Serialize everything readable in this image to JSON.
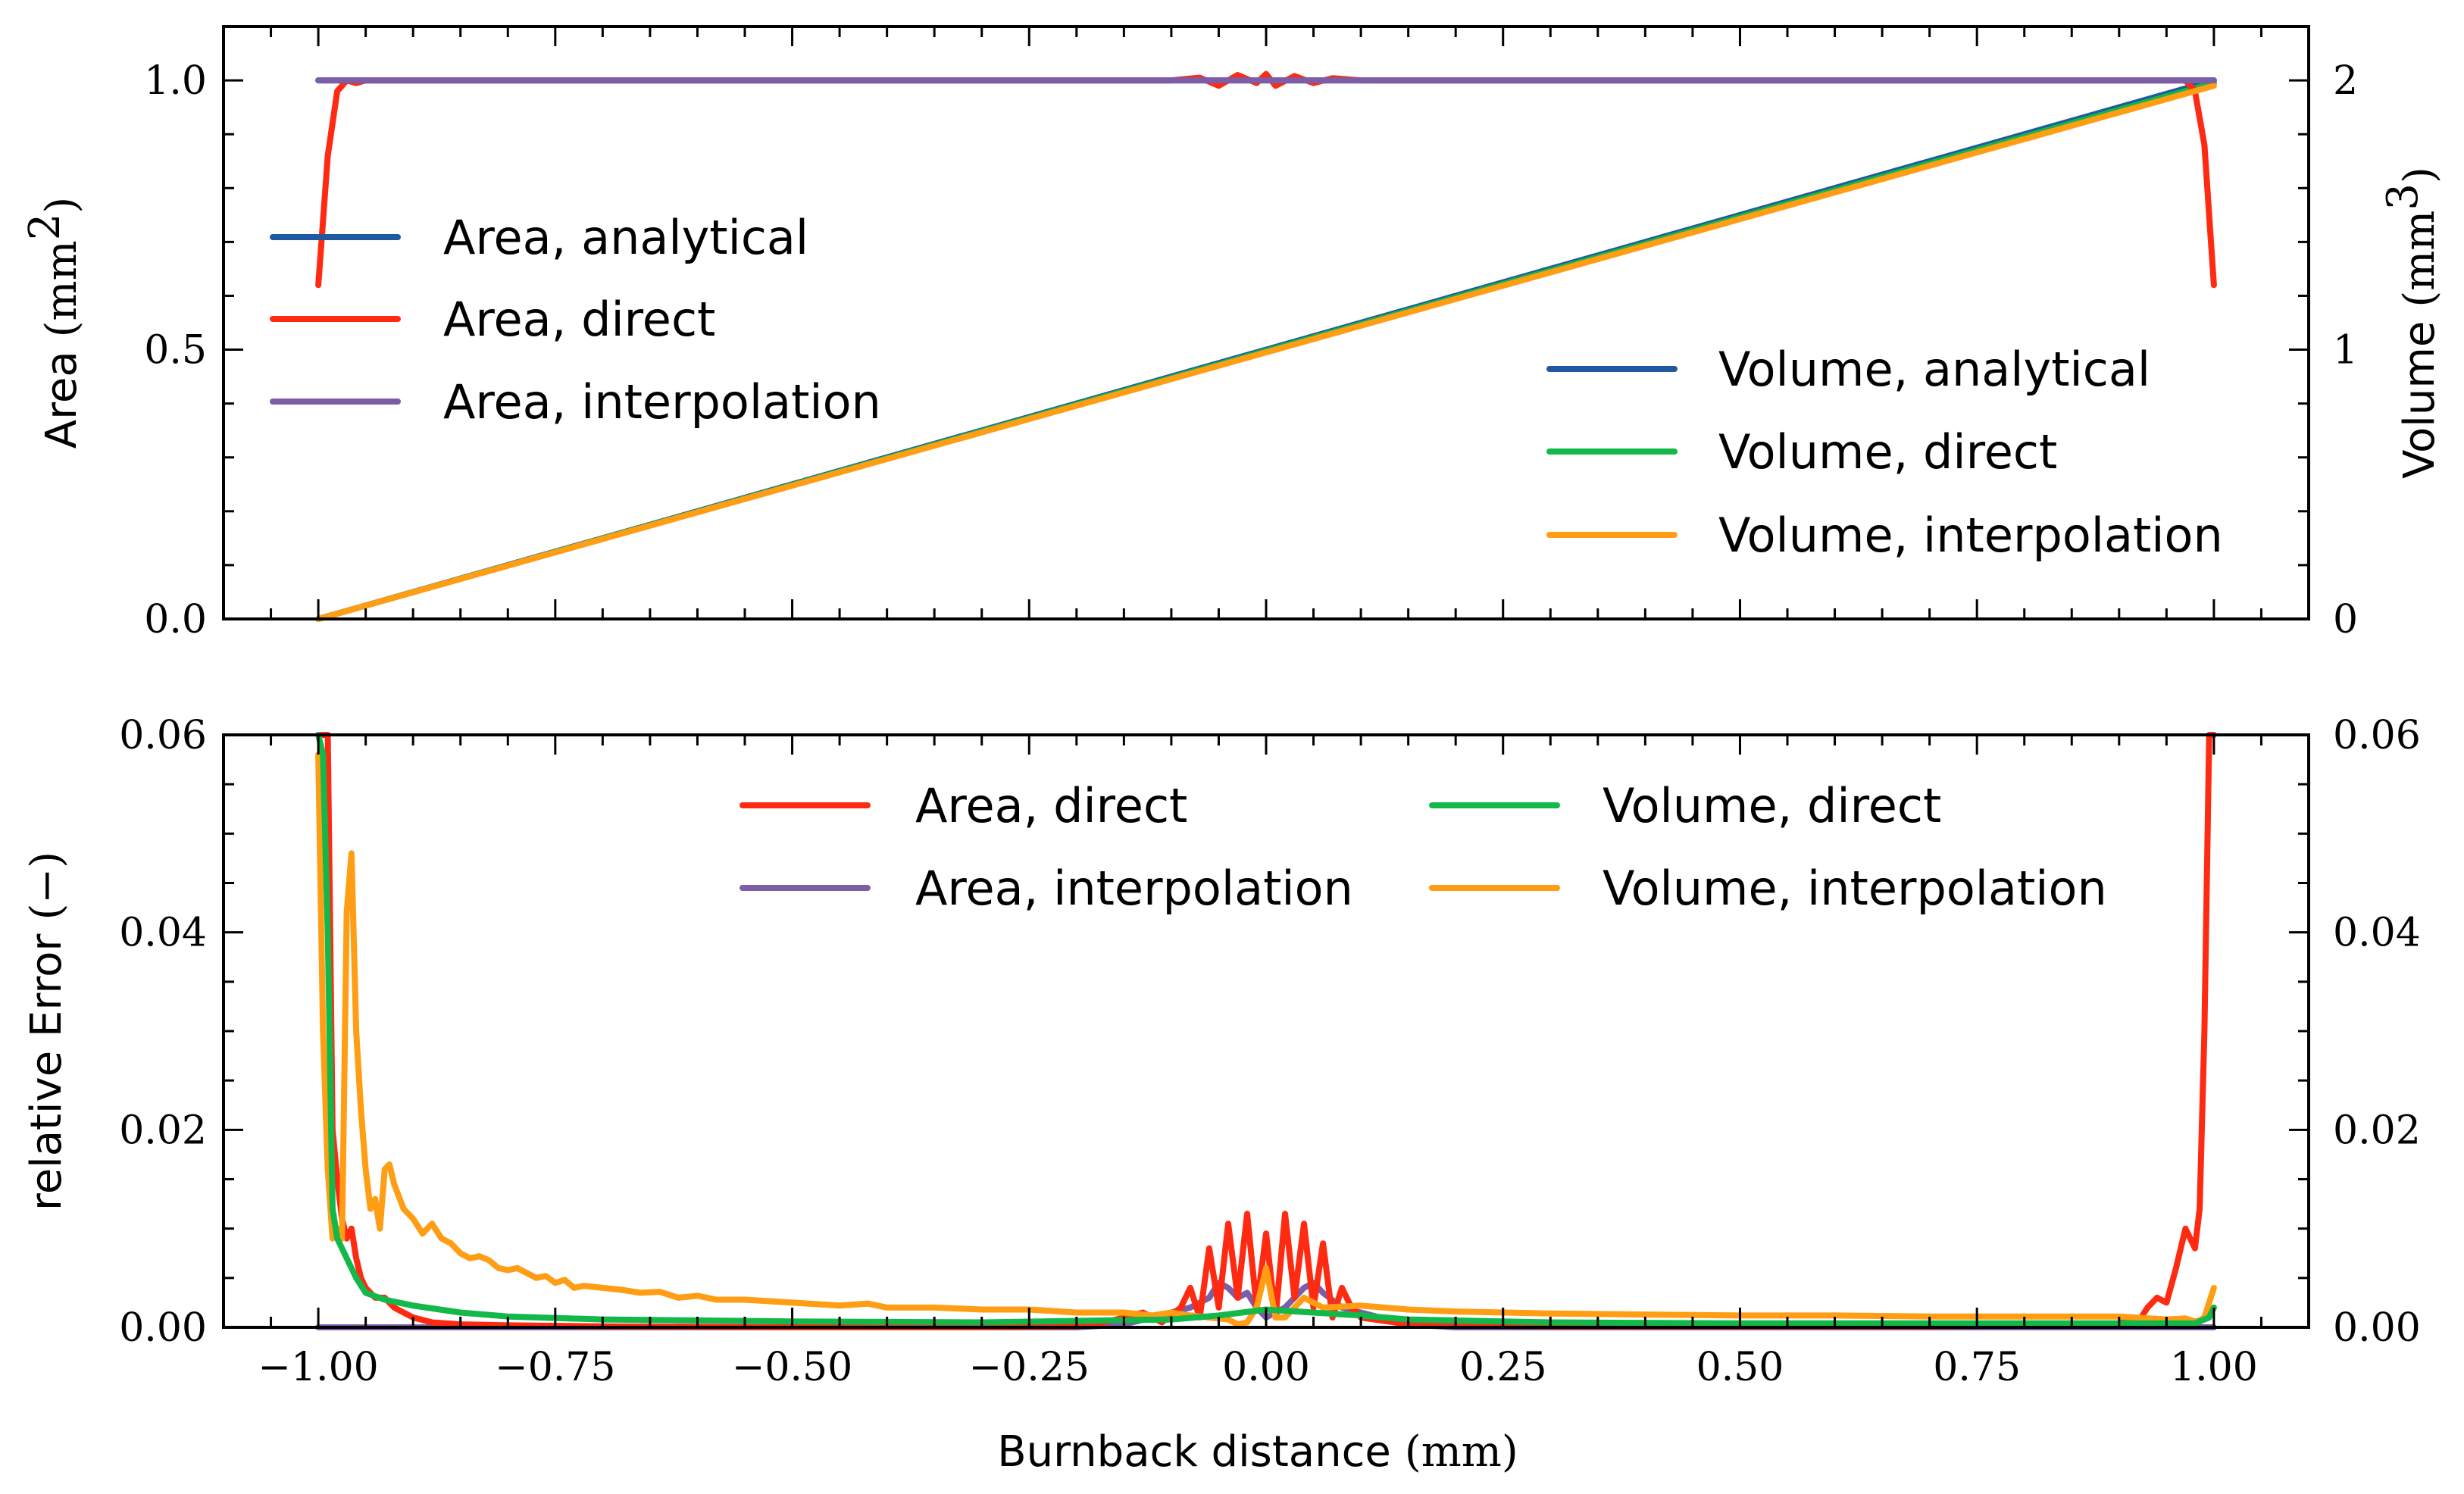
{
  "colors": {
    "area_analytical": "#1f5aa0",
    "area_direct": "#ff2a12",
    "area_interpolation": "#7b5ea7",
    "volume_analytical": "#1f5aa0",
    "volume_direct": "#12b84a",
    "volume_interpolation": "#ff9d14"
  },
  "chart_data": [
    {
      "type": "line",
      "panel": "top",
      "ylabel": "Area",
      "ylabel_unit": "(mm",
      "ylabel_unit_exp": "2",
      "ylabel_unit_close": ")",
      "y2label": "Volume",
      "y2label_unit": "(mm",
      "y2label_unit_exp": "3",
      "y2label_unit_close": ")",
      "xlim": [
        -1.1,
        1.1
      ],
      "ylim": [
        0,
        1.1
      ],
      "y2lim": [
        0,
        2.2
      ],
      "x_ticks": [
        -1.0,
        -0.75,
        -0.5,
        -0.25,
        0.0,
        0.25,
        0.5,
        0.75,
        1.0
      ],
      "y_ticks": [
        0.0,
        0.5,
        1.0
      ],
      "y_tick_labels": [
        "0.0",
        "0.5",
        "1.0"
      ],
      "y2_ticks": [
        0,
        1,
        2
      ],
      "y2_tick_labels": [
        "0",
        "1",
        "2"
      ],
      "legend_left": [
        "Area, analytical",
        "Area, direct",
        "Area, interpolation"
      ],
      "legend_left_keys": [
        "area_analytical",
        "area_direct",
        "area_interpolation"
      ],
      "legend_right": [
        "Volume, analytical",
        "Volume, direct",
        "Volume, interpolation"
      ],
      "legend_right_keys": [
        "volume_analytical",
        "volume_direct",
        "volume_interpolation"
      ],
      "series": [
        {
          "name": "Area, analytical",
          "axis": "left",
          "x": [
            -1.0,
            1.0
          ],
          "values": [
            1.0,
            1.0
          ]
        },
        {
          "name": "Area, direct",
          "axis": "left",
          "x": [
            -1.0,
            -0.99,
            -0.98,
            -0.97,
            -0.96,
            -0.95,
            -0.94,
            -0.9,
            -0.8,
            -0.5,
            -0.1,
            -0.07,
            -0.05,
            -0.03,
            -0.01,
            0.0,
            0.01,
            0.03,
            0.05,
            0.07,
            0.1,
            0.5,
            0.9,
            0.95,
            0.96,
            0.97,
            0.98,
            0.99,
            1.0
          ],
          "values": [
            0.62,
            0.86,
            0.98,
            1.0,
            0.995,
            1.0,
            1.0,
            1.0,
            1.0,
            1.0,
            1.0,
            1.005,
            0.99,
            1.01,
            0.995,
            1.012,
            0.99,
            1.008,
            0.995,
            1.004,
            1.0,
            1.0,
            1.0,
            1.0,
            1.0,
            1.0,
            0.98,
            0.88,
            0.62
          ]
        },
        {
          "name": "Area, interpolation",
          "axis": "left",
          "x": [
            -1.0,
            1.0
          ],
          "values": [
            1.0,
            1.0
          ]
        },
        {
          "name": "Volume, analytical",
          "axis": "right",
          "x": [
            -1.0,
            1.0
          ],
          "values": [
            0.0,
            2.0
          ]
        },
        {
          "name": "Volume, direct",
          "axis": "right",
          "x": [
            -1.0,
            1.0
          ],
          "values": [
            0.0,
            1.99
          ]
        },
        {
          "name": "Volume, interpolation",
          "axis": "right",
          "x": [
            -1.0,
            1.0
          ],
          "values": [
            0.0,
            1.98
          ]
        }
      ]
    },
    {
      "type": "line",
      "panel": "bottom",
      "xlabel": "Burnback distance",
      "xlabel_unit": "(mm)",
      "ylabel": "relative Error",
      "ylabel_unit": "(−)",
      "xlim": [
        -1.1,
        1.1
      ],
      "ylim": [
        0,
        0.06
      ],
      "y2lim": [
        0,
        0.06
      ],
      "x_ticks": [
        -1.0,
        -0.75,
        -0.5,
        -0.25,
        0.0,
        0.25,
        0.5,
        0.75,
        1.0
      ],
      "x_tick_labels": [
        "−1.00",
        "−0.75",
        "−0.50",
        "−0.25",
        "0.00",
        "0.25",
        "0.50",
        "0.75",
        "1.00"
      ],
      "y_ticks": [
        0.0,
        0.02,
        0.04,
        0.06
      ],
      "y_tick_labels": [
        "0.00",
        "0.02",
        "0.04",
        "0.06"
      ],
      "y2_tick_labels": [
        "0.00",
        "0.02",
        "0.04",
        "0.06"
      ],
      "legend_col1": [
        "Area, direct",
        "Area, interpolation"
      ],
      "legend_col1_keys": [
        "area_direct",
        "area_interpolation"
      ],
      "legend_col2": [
        "Volume, direct",
        "Volume, interpolation"
      ],
      "legend_col2_keys": [
        "volume_direct",
        "volume_interpolation"
      ],
      "series": [
        {
          "name": "Area, direct",
          "x": [
            -1.0,
            -0.995,
            -0.99,
            -0.985,
            -0.98,
            -0.975,
            -0.97,
            -0.965,
            -0.96,
            -0.955,
            -0.95,
            -0.94,
            -0.93,
            -0.92,
            -0.91,
            -0.9,
            -0.88,
            -0.85,
            -0.8,
            -0.7,
            -0.5,
            -0.3,
            -0.2,
            -0.17,
            -0.15,
            -0.13,
            -0.11,
            -0.09,
            -0.08,
            -0.07,
            -0.06,
            -0.05,
            -0.04,
            -0.03,
            -0.02,
            -0.01,
            0.0,
            0.01,
            0.02,
            0.03,
            0.04,
            0.05,
            0.06,
            0.07,
            0.08,
            0.09,
            0.1,
            0.15,
            0.3,
            0.5,
            0.7,
            0.9,
            0.91,
            0.92,
            0.93,
            0.94,
            0.95,
            0.96,
            0.97,
            0.98,
            0.985,
            0.99,
            0.995,
            1.0
          ],
          "values": [
            0.06,
            0.06,
            0.06,
            0.02,
            0.015,
            0.011,
            0.009,
            0.01,
            0.007,
            0.005,
            0.004,
            0.003,
            0.003,
            0.002,
            0.0015,
            0.001,
            0.0005,
            0.0003,
            0.0002,
            0.0001,
            0.0,
            0.0,
            0.0001,
            0.0005,
            0.001,
            0.0015,
            0.0005,
            0.002,
            0.004,
            0.001,
            0.008,
            0.002,
            0.0105,
            0.003,
            0.0115,
            0.002,
            0.0095,
            0.001,
            0.0115,
            0.003,
            0.0105,
            0.002,
            0.0085,
            0.001,
            0.004,
            0.002,
            0.001,
            0.0003,
            0.0001,
            0.0001,
            0.0001,
            0.0003,
            0.001,
            0.0005,
            0.002,
            0.003,
            0.0025,
            0.006,
            0.01,
            0.008,
            0.012,
            0.03,
            0.06,
            0.06
          ]
        },
        {
          "name": "Area, interpolation",
          "x": [
            -1.0,
            -0.5,
            -0.2,
            -0.15,
            -0.12,
            -0.1,
            -0.08,
            -0.06,
            -0.05,
            -0.04,
            -0.03,
            -0.02,
            -0.01,
            0.0,
            0.01,
            0.02,
            0.03,
            0.04,
            0.05,
            0.06,
            0.08,
            0.1,
            0.12,
            0.15,
            0.2,
            0.5,
            1.0
          ],
          "values": [
            0.0,
            0.0,
            0.0,
            0.0003,
            0.001,
            0.0015,
            0.002,
            0.003,
            0.0045,
            0.004,
            0.003,
            0.0035,
            0.002,
            0.001,
            0.0015,
            0.002,
            0.003,
            0.004,
            0.0045,
            0.0035,
            0.002,
            0.0015,
            0.001,
            0.0003,
            0.0,
            0.0,
            0.0
          ]
        },
        {
          "name": "Volume, direct",
          "x": [
            -1.0,
            -0.995,
            -0.99,
            -0.985,
            -0.98,
            -0.97,
            -0.96,
            -0.95,
            -0.93,
            -0.9,
            -0.85,
            -0.8,
            -0.7,
            -0.6,
            -0.5,
            -0.3,
            -0.1,
            -0.05,
            0.0,
            0.05,
            0.1,
            0.15,
            0.3,
            0.5,
            0.7,
            0.9,
            0.98,
            0.995,
            1.0
          ],
          "values": [
            0.06,
            0.058,
            0.04,
            0.012,
            0.009,
            0.007,
            0.005,
            0.0035,
            0.0028,
            0.0022,
            0.0015,
            0.0011,
            0.0008,
            0.0007,
            0.0006,
            0.0005,
            0.0008,
            0.0012,
            0.0018,
            0.0015,
            0.0012,
            0.0008,
            0.0005,
            0.0004,
            0.0004,
            0.0004,
            0.0004,
            0.001,
            0.002
          ]
        },
        {
          "name": "Volume, interpolation",
          "x": [
            -1.0,
            -0.995,
            -0.99,
            -0.985,
            -0.98,
            -0.975,
            -0.97,
            -0.965,
            -0.96,
            -0.955,
            -0.95,
            -0.945,
            -0.94,
            -0.935,
            -0.93,
            -0.925,
            -0.92,
            -0.91,
            -0.9,
            -0.89,
            -0.88,
            -0.87,
            -0.86,
            -0.85,
            -0.84,
            -0.83,
            -0.82,
            -0.81,
            -0.8,
            -0.79,
            -0.78,
            -0.77,
            -0.76,
            -0.75,
            -0.74,
            -0.73,
            -0.72,
            -0.7,
            -0.68,
            -0.66,
            -0.64,
            -0.62,
            -0.6,
            -0.58,
            -0.55,
            -0.5,
            -0.45,
            -0.42,
            -0.4,
            -0.35,
            -0.3,
            -0.25,
            -0.2,
            -0.15,
            -0.12,
            -0.1,
            -0.08,
            -0.06,
            -0.04,
            -0.03,
            -0.02,
            -0.01,
            0.0,
            0.01,
            0.02,
            0.04,
            0.06,
            0.1,
            0.15,
            0.2,
            0.3,
            0.4,
            0.5,
            0.6,
            0.7,
            0.8,
            0.9,
            0.95,
            0.97,
            0.98,
            0.985,
            0.99,
            0.995,
            1.0
          ],
          "values": [
            0.058,
            0.03,
            0.016,
            0.009,
            0.01,
            0.009,
            0.042,
            0.048,
            0.03,
            0.022,
            0.016,
            0.012,
            0.013,
            0.01,
            0.016,
            0.0165,
            0.0145,
            0.012,
            0.011,
            0.0095,
            0.0105,
            0.009,
            0.0085,
            0.0075,
            0.007,
            0.0072,
            0.0068,
            0.006,
            0.0058,
            0.006,
            0.0055,
            0.005,
            0.0052,
            0.0045,
            0.0048,
            0.004,
            0.0042,
            0.004,
            0.0038,
            0.0035,
            0.0036,
            0.003,
            0.0032,
            0.0028,
            0.0028,
            0.0025,
            0.0022,
            0.0024,
            0.002,
            0.002,
            0.0018,
            0.0018,
            0.0015,
            0.0015,
            0.0012,
            0.0015,
            0.0012,
            0.001,
            0.0008,
            0.0003,
            0.0005,
            0.002,
            0.006,
            0.001,
            0.001,
            0.003,
            0.002,
            0.0022,
            0.0018,
            0.0016,
            0.0014,
            0.0013,
            0.0012,
            0.0012,
            0.0011,
            0.0011,
            0.0011,
            0.0008,
            0.0009,
            0.0006,
            0.0007,
            0.001,
            0.0025,
            0.004
          ]
        }
      ]
    }
  ]
}
